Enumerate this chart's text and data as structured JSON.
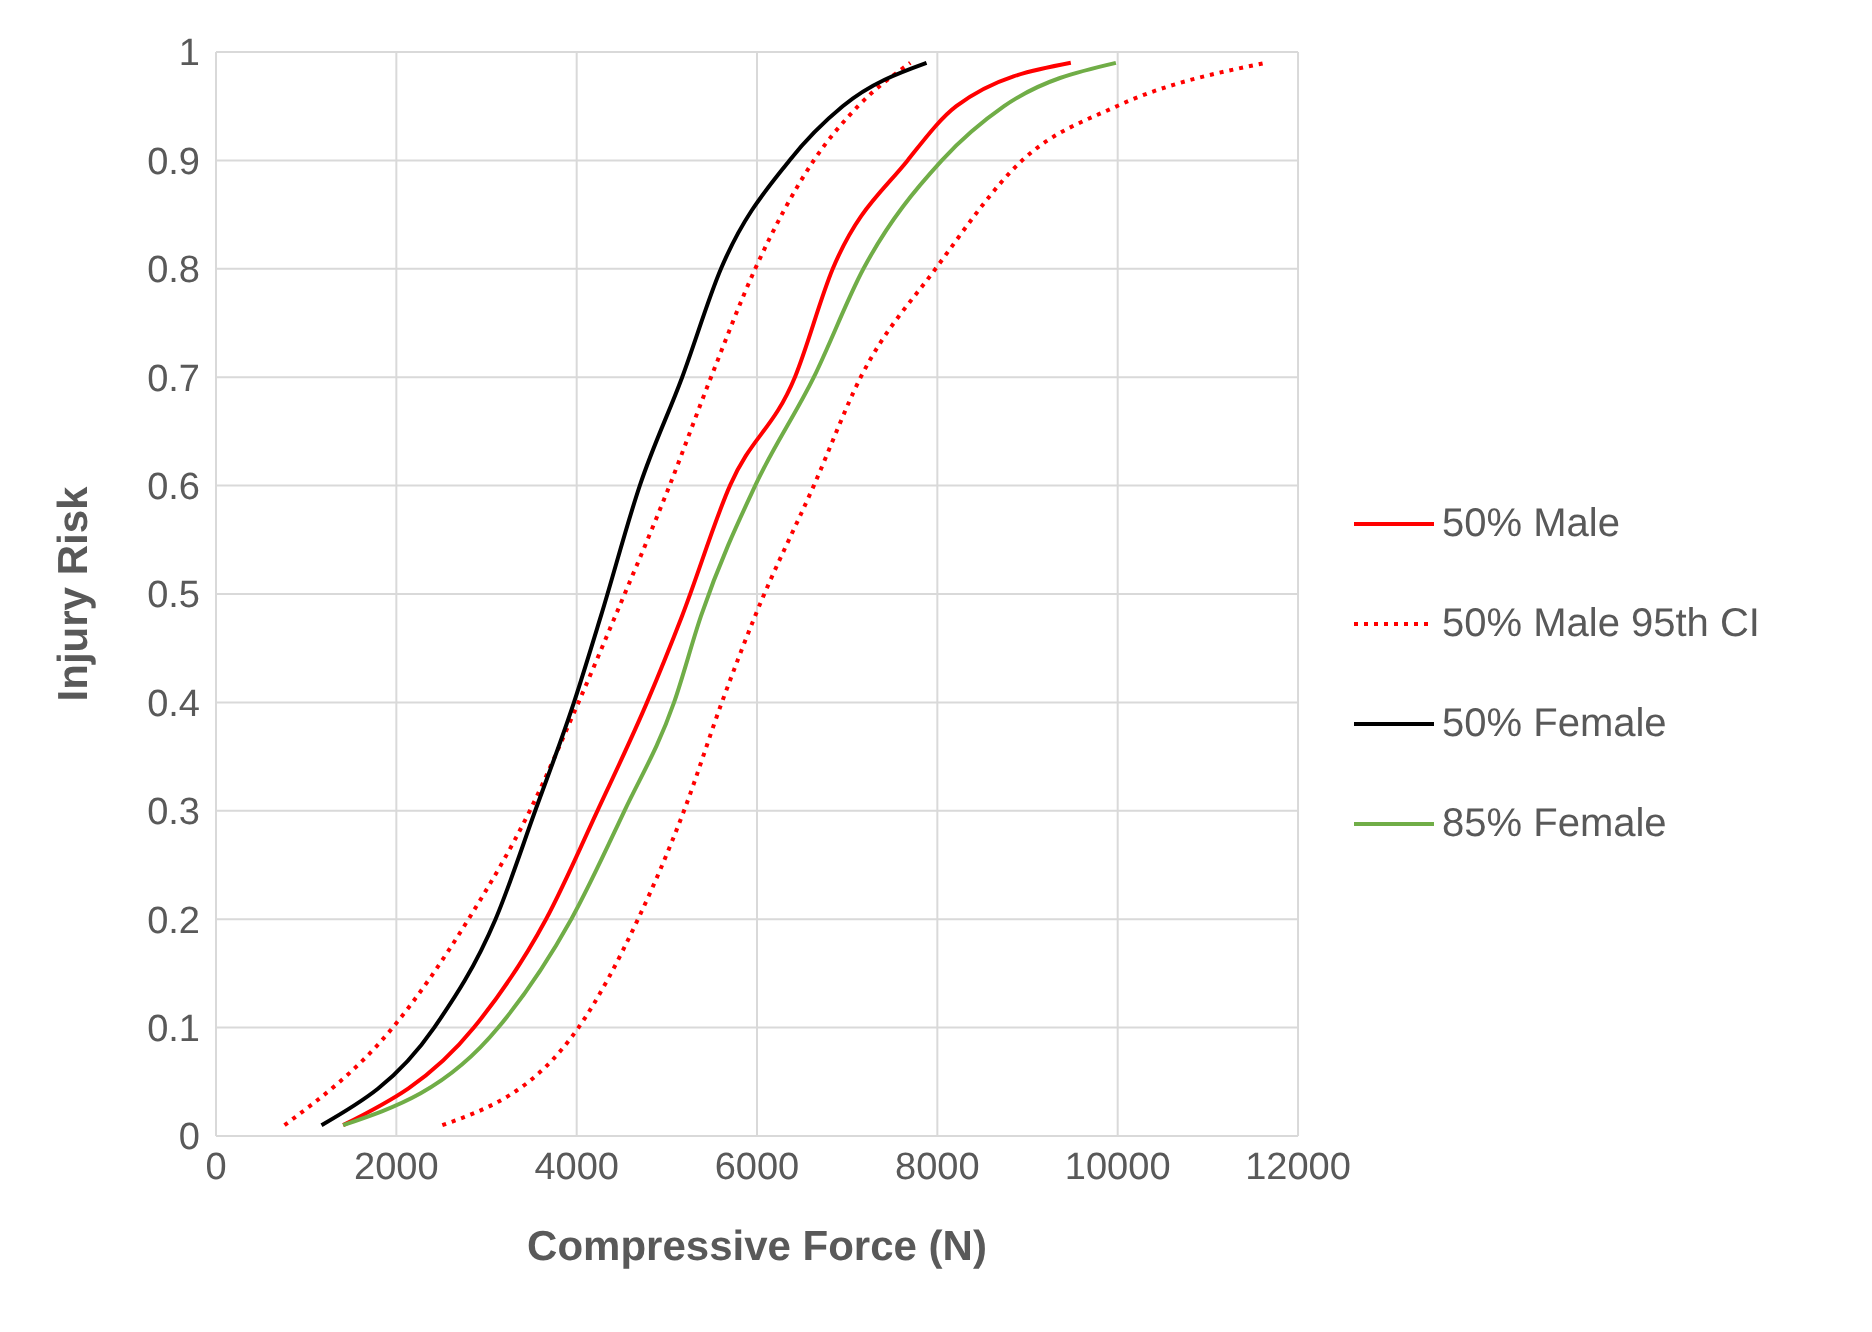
{
  "chart_data": {
    "type": "line",
    "xlabel": "Compressive Force (N)",
    "ylabel": "Injury Risk",
    "xlim": [
      0,
      12000
    ],
    "xticks": [
      0,
      2000,
      4000,
      6000,
      8000,
      10000,
      12000
    ],
    "ylim": [
      0,
      1
    ],
    "yticks": [
      0,
      0.1,
      0.2,
      0.3,
      0.4,
      0.5,
      0.6,
      0.7,
      0.8,
      0.9,
      1
    ],
    "grid": true,
    "legend": "right",
    "marker": "none",
    "series": [
      {
        "name": "50% Male",
        "color": "#ff0000",
        "line_style": "solid",
        "x": [
          1410,
          2860,
          3660,
          4230,
          4780,
          5170,
          5700,
          6420,
          6840,
          7670,
          8210,
          9480
        ],
        "values": [
          0.01,
          0.1,
          0.2,
          0.3,
          0.4,
          0.48,
          0.6,
          0.7,
          0.8,
          0.9,
          0.95,
          0.99
        ]
      },
      {
        "name": "50% Male 95th CI",
        "color": "#ff0000",
        "line_style": "dotted",
        "x": [
          760,
          1960,
          2800,
          3480,
          4020,
          4430,
          5030,
          5490,
          5980,
          6630,
          7120,
          7700
        ],
        "values": [
          0.01,
          0.1,
          0.2,
          0.3,
          0.4,
          0.48,
          0.6,
          0.7,
          0.8,
          0.9,
          0.95,
          0.99
        ]
      },
      {
        "color": "#ff0000",
        "line_style": "dotted",
        "x": [
          2510,
          4020,
          4680,
          5190,
          5610,
          5980,
          6630,
          7150,
          7980,
          8940,
          9990,
          11640
        ],
        "values": [
          0.01,
          0.1,
          0.2,
          0.3,
          0.4,
          0.48,
          0.6,
          0.7,
          0.8,
          0.9,
          0.95,
          0.99
        ]
      },
      {
        "name": "50% Female",
        "color": "#000000",
        "line_style": "solid",
        "x": [
          1170,
          2420,
          3100,
          3540,
          3970,
          4270,
          4700,
          5170,
          5600,
          6360,
          6950,
          7880
        ],
        "values": [
          0.01,
          0.1,
          0.2,
          0.3,
          0.4,
          0.48,
          0.6,
          0.7,
          0.8,
          0.9,
          0.95,
          0.99
        ]
      },
      {
        "name": "85% Female",
        "color": "#70ad47",
        "line_style": "solid",
        "x": [
          1410,
          3130,
          3940,
          4530,
          5080,
          5380,
          5980,
          6630,
          7180,
          8050,
          8740,
          9980
        ],
        "values": [
          0.01,
          0.1,
          0.2,
          0.3,
          0.4,
          0.48,
          0.6,
          0.7,
          0.8,
          0.9,
          0.95,
          0.99
        ]
      }
    ]
  }
}
